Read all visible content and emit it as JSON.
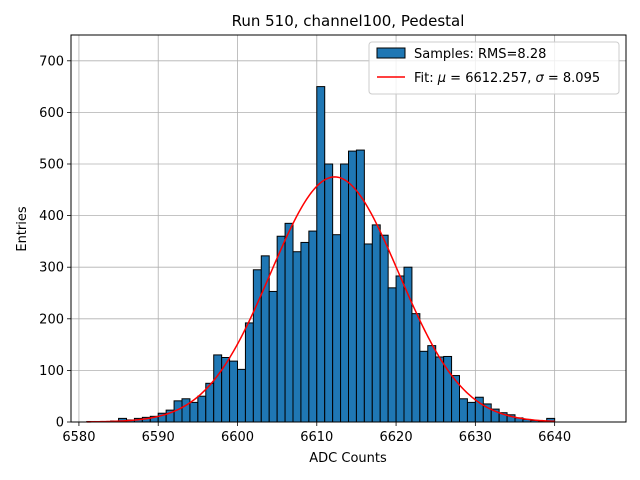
{
  "chart_data": {
    "type": "bar",
    "title": "Run 510, channel100, Pedestal",
    "xlabel": "ADC Counts",
    "ylabel": "Entries",
    "xlim": [
      6579,
      6649
    ],
    "ylim": [
      0,
      750
    ],
    "xticks": [
      6580,
      6590,
      6600,
      6610,
      6620,
      6630,
      6640
    ],
    "yticks": [
      0,
      100,
      200,
      300,
      400,
      500,
      600,
      700
    ],
    "grid": true,
    "legend_position": "top-right",
    "bin_width": 1,
    "bins": {
      "left_edges": [
        6581,
        6582,
        6583,
        6584,
        6585,
        6586,
        6587,
        6588,
        6589,
        6590,
        6591,
        6592,
        6593,
        6594,
        6595,
        6596,
        6597,
        6598,
        6599,
        6600,
        6601,
        6602,
        6603,
        6604,
        6605,
        6606,
        6607,
        6608,
        6609,
        6610,
        6611,
        6612,
        6613,
        6614,
        6615,
        6616,
        6617,
        6618,
        6619,
        6620,
        6621,
        6622,
        6623,
        6624,
        6625,
        6626,
        6627,
        6628,
        6629,
        6630,
        6631,
        6632,
        6633,
        6634,
        6635,
        6636,
        6637,
        6638,
        6639
      ],
      "counts": [
        1,
        1,
        1,
        2,
        7,
        4,
        7,
        9,
        11,
        17,
        23,
        41,
        45,
        38,
        50,
        75,
        130,
        125,
        118,
        102,
        192,
        295,
        322,
        253,
        360,
        385,
        330,
        348,
        370,
        650,
        500,
        363,
        500,
        525,
        527,
        345,
        382,
        362,
        260,
        283,
        300,
        210,
        137,
        148,
        126,
        127,
        90,
        45,
        38,
        48,
        35,
        25,
        18,
        14,
        8,
        5,
        3,
        2,
        7
      ]
    },
    "series": [
      {
        "name": "Samples: RMS=8.28",
        "kind": "histogram",
        "color": "#1f77b4",
        "edgecolor": "#000000"
      },
      {
        "name_prefix": "Fit: ",
        "name_mu_symbol": "μ",
        "name_mu_value": " = 6612.257, ",
        "name_sigma_symbol": "σ",
        "name_sigma_value": " = 8.095",
        "kind": "gaussian-fit",
        "color": "#ff0000",
        "mu": 6612.257,
        "sigma": 8.095,
        "amplitude": 475,
        "x_range": [
          6581,
          6640
        ]
      }
    ]
  }
}
